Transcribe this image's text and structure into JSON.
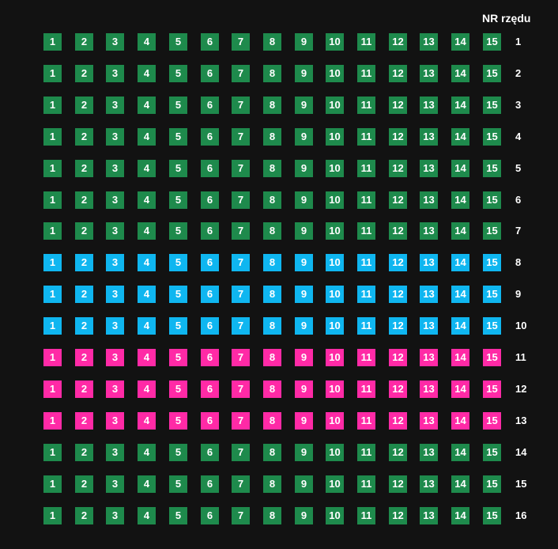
{
  "header": {
    "title": "NR rzędu"
  },
  "colors": {
    "green": "#1e8a4c",
    "blue": "#0fb6f0",
    "pink": "#ff2aa6"
  },
  "seats": [
    "1",
    "2",
    "3",
    "4",
    "5",
    "6",
    "7",
    "8",
    "9",
    "10",
    "11",
    "12",
    "13",
    "14",
    "15"
  ],
  "rows": [
    {
      "label": "1",
      "color": "green"
    },
    {
      "label": "2",
      "color": "green"
    },
    {
      "label": "3",
      "color": "green"
    },
    {
      "label": "4",
      "color": "green"
    },
    {
      "label": "5",
      "color": "green"
    },
    {
      "label": "6",
      "color": "green"
    },
    {
      "label": "7",
      "color": "green"
    },
    {
      "label": "8",
      "color": "blue"
    },
    {
      "label": "9",
      "color": "blue"
    },
    {
      "label": "10",
      "color": "blue"
    },
    {
      "label": "11",
      "color": "pink"
    },
    {
      "label": "12",
      "color": "pink"
    },
    {
      "label": "13",
      "color": "pink"
    },
    {
      "label": "14",
      "color": "green"
    },
    {
      "label": "15",
      "color": "green"
    },
    {
      "label": "16",
      "color": "green"
    }
  ]
}
